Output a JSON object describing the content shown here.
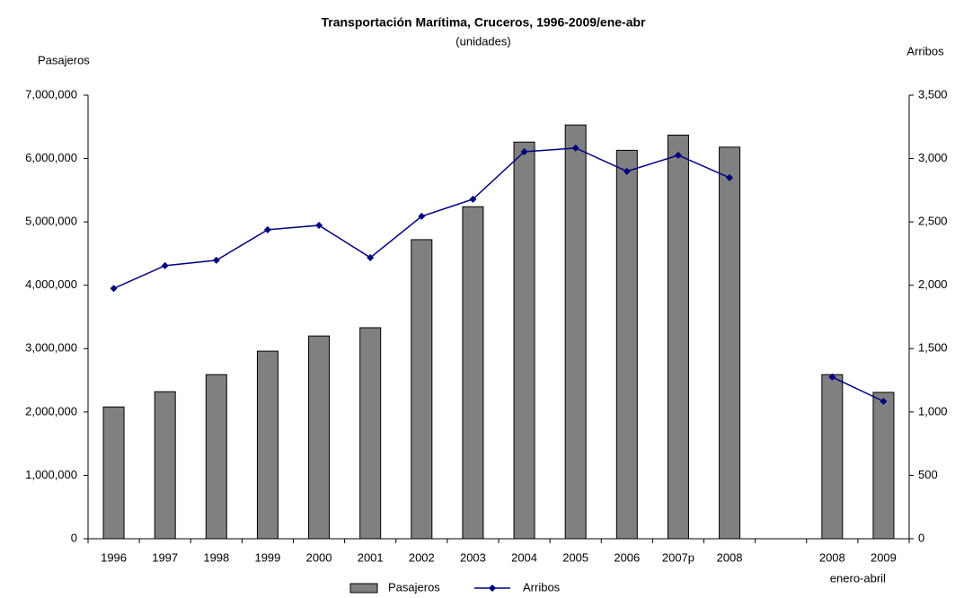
{
  "chart_data": {
    "type": "bar_line",
    "title": "Transportación Marítima, Cruceros, 1996-2009/ene-abr",
    "subtitle": "(unidades)",
    "y_label": "Pasajeros",
    "y2_label": "Arribos",
    "annotation": "enero-abril",
    "categories": [
      "1996",
      "1997",
      "1998",
      "1999",
      "2000",
      "2001",
      "2002",
      "2003",
      "2004",
      "2005",
      "2006",
      "2007p",
      "2008",
      null,
      "2008",
      "2009"
    ],
    "series": [
      {
        "name": "Pasajeros",
        "type": "bar",
        "color": "#808080",
        "values": [
          2080000,
          2320000,
          2590000,
          2960000,
          3200000,
          3330000,
          4720000,
          5240000,
          6260000,
          6530000,
          6130000,
          6370000,
          6180000,
          null,
          2590000,
          2310000
        ]
      },
      {
        "name": "Arribos",
        "type": "line",
        "axis": "y2",
        "color": "#000080",
        "values": [
          1975,
          2155,
          2197,
          2438,
          2473,
          2218,
          2544,
          2679,
          3054,
          3083,
          2899,
          3026,
          2849,
          null,
          1276,
          1084
        ]
      }
    ],
    "ylim": [
      0,
      7000000
    ],
    "yticks": [
      0,
      {
        "value": 1000000,
        "label": "1,000,000"
      },
      {
        "value": 2000000,
        "label": "2,000,000"
      },
      {
        "value": 3000000,
        "label": "3,000,000"
      },
      {
        "value": 4000000,
        "label": "4,000,000"
      },
      {
        "value": 5000000,
        "label": "5,000,000"
      },
      {
        "value": 6000000,
        "label": "6,000,000"
      },
      {
        "value": 7000000,
        "label": "7,000,000"
      }
    ],
    "y2lim": [
      0,
      3500
    ],
    "y2ticks": [
      0,
      500,
      {
        "value": 1000,
        "label": "1,000"
      },
      {
        "value": 1500,
        "label": "1,500"
      },
      {
        "value": 2000,
        "label": "2,000"
      },
      {
        "value": 2500,
        "label": "2,500"
      },
      {
        "value": 3000,
        "label": "3,000"
      },
      {
        "value": 3500,
        "label": "3,500"
      }
    ]
  }
}
